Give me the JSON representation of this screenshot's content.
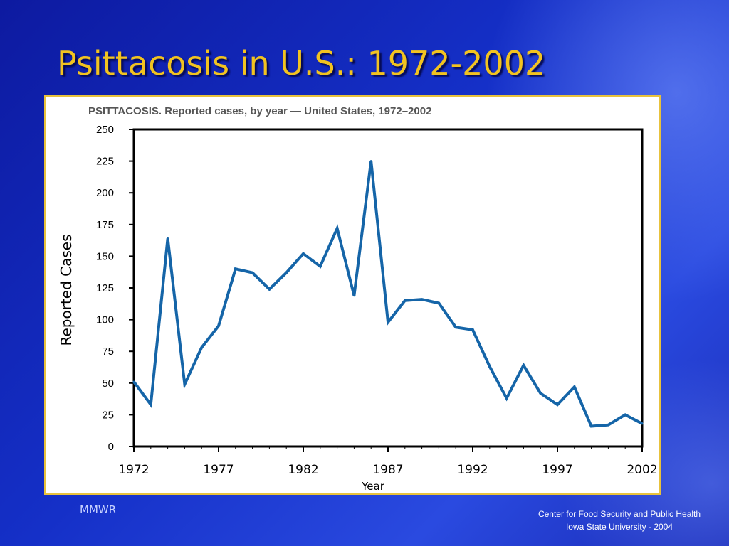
{
  "slide": {
    "title": "Psittacosis in U.S.: 1972-2002",
    "footer_left": "MMWR",
    "footer_right_line1": "Center for Food Security and Public Health",
    "footer_right_line2": "Iowa State University - 2004"
  },
  "colors": {
    "line": "#1565a8",
    "title": "#f2c320",
    "frame_border": "#e8c23c"
  },
  "chart_data": {
    "type": "line",
    "title": "PSITTACOSIS. Reported cases, by year — United States, 1972–2002",
    "xlabel": "Year",
    "ylabel": "Reported Cases",
    "ylim": [
      0,
      250
    ],
    "xlim": [
      1972,
      2002
    ],
    "yticks": [
      0,
      25,
      50,
      75,
      100,
      125,
      150,
      175,
      200,
      225,
      250
    ],
    "xticks": [
      1972,
      1977,
      1982,
      1987,
      1992,
      1997,
      2002
    ],
    "grid": false,
    "legend": "none",
    "x": [
      1972,
      1973,
      1974,
      1975,
      1976,
      1977,
      1978,
      1979,
      1980,
      1981,
      1982,
      1983,
      1984,
      1985,
      1986,
      1987,
      1988,
      1989,
      1990,
      1991,
      1992,
      1993,
      1994,
      1995,
      1996,
      1997,
      1998,
      1999,
      2000,
      2001,
      2002
    ],
    "y": [
      51,
      33,
      164,
      49,
      78,
      95,
      140,
      137,
      124,
      137,
      152,
      142,
      172,
      119,
      225,
      98,
      115,
      116,
      113,
      94,
      92,
      63,
      38,
      64,
      42,
      33,
      47,
      16,
      17,
      25,
      18
    ]
  }
}
